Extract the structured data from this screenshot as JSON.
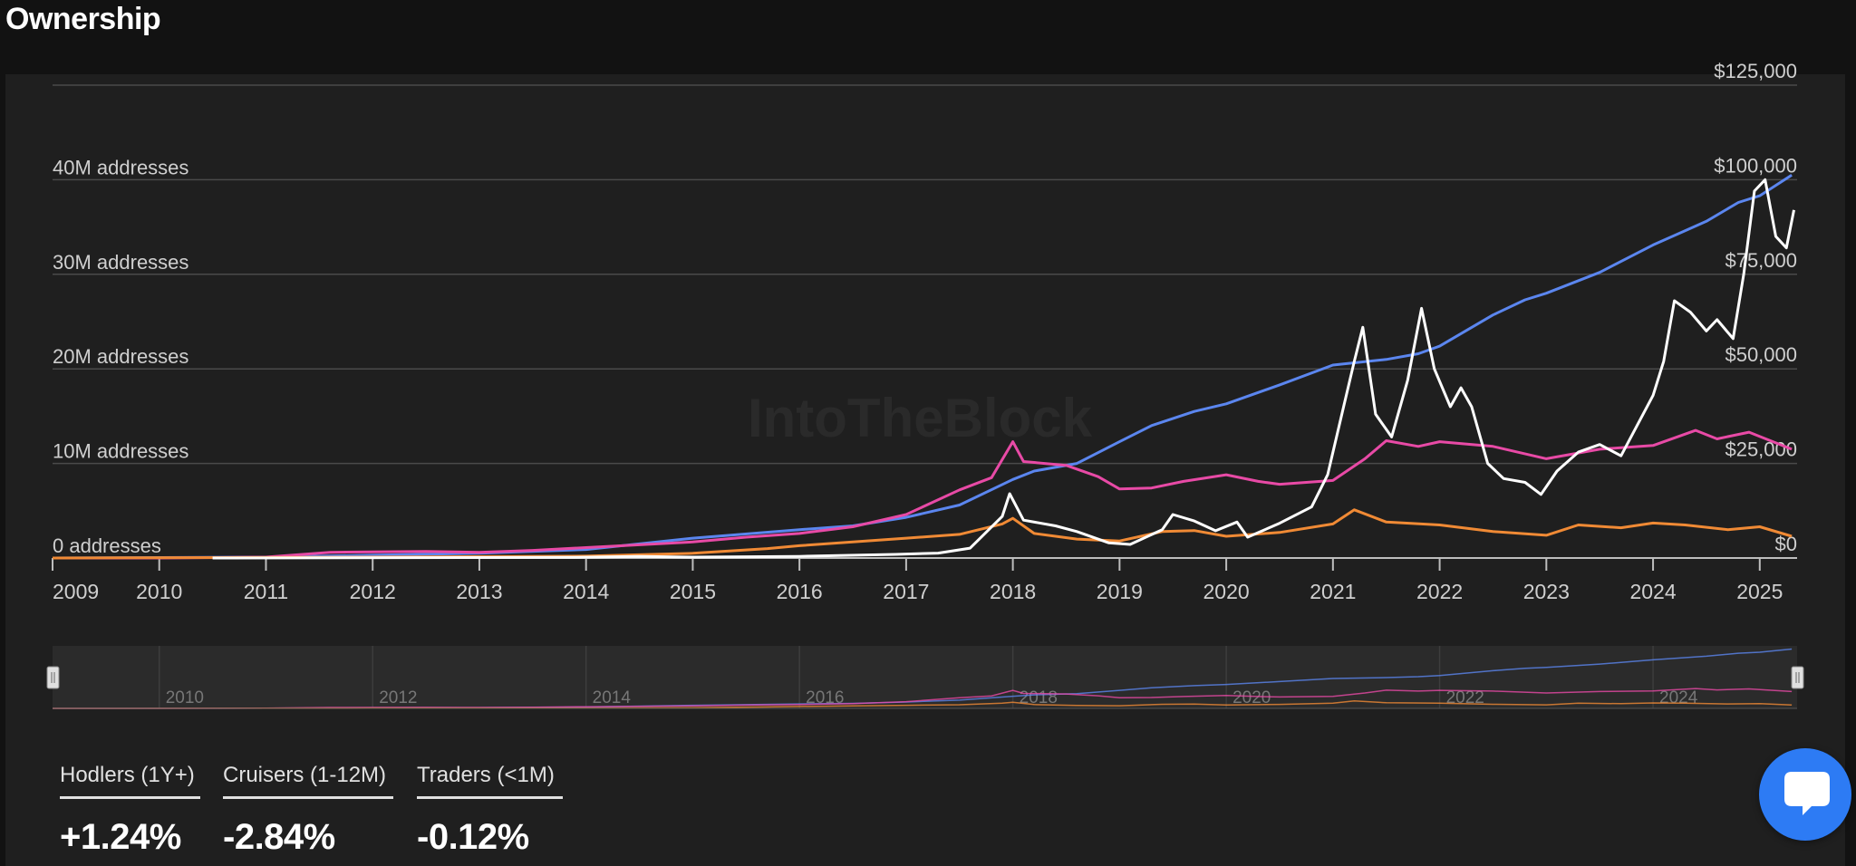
{
  "page": {
    "title": "Ownership"
  },
  "chart_data": {
    "type": "line",
    "title": "",
    "watermark": "IntoTheBlock",
    "x_range": [
      "2009-01-01",
      "2025-04-20"
    ],
    "x_ticks": [
      "2009",
      "2010",
      "2011",
      "2012",
      "2013",
      "2014",
      "2015",
      "2016",
      "2017",
      "2018",
      "2019",
      "2020",
      "2021",
      "2022",
      "2023",
      "2024",
      "2025"
    ],
    "y_left": {
      "min": 0,
      "max": 50000000,
      "ticks": [
        {
          "value": 0,
          "label": "0 addresses"
        },
        {
          "value": 10000000,
          "label": "10M addresses"
        },
        {
          "value": 20000000,
          "label": "20M addresses"
        },
        {
          "value": 30000000,
          "label": "30M addresses"
        },
        {
          "value": 40000000,
          "label": "40M addresses"
        }
      ]
    },
    "y_right": {
      "min": 0,
      "max": 125000,
      "ticks": [
        {
          "value": 0,
          "label": "$0"
        },
        {
          "value": 25000,
          "label": "$25,000"
        },
        {
          "value": 50000,
          "label": "$50,000"
        },
        {
          "value": 75000,
          "label": "$75,000"
        },
        {
          "value": 100000,
          "label": "$100,000"
        },
        {
          "value": 125000,
          "label": "$125,000"
        }
      ]
    },
    "grid": true,
    "series": [
      {
        "name": "Hodlers (1Y+)",
        "axis": "left",
        "color": "#5b86ef",
        "points": [
          [
            2009.0,
            0
          ],
          [
            2011.0,
            0.1
          ],
          [
            2012.0,
            0.3
          ],
          [
            2013.0,
            0.5
          ],
          [
            2014.0,
            0.9
          ],
          [
            2015.0,
            2.1
          ],
          [
            2016.0,
            3.0
          ],
          [
            2016.5,
            3.4
          ],
          [
            2017.0,
            4.3
          ],
          [
            2017.5,
            5.6
          ],
          [
            2018.0,
            8.3
          ],
          [
            2018.2,
            9.2
          ],
          [
            2018.6,
            10.0
          ],
          [
            2019.0,
            12.3
          ],
          [
            2019.3,
            14.0
          ],
          [
            2019.7,
            15.5
          ],
          [
            2020.0,
            16.3
          ],
          [
            2020.5,
            18.3
          ],
          [
            2021.0,
            20.4
          ],
          [
            2021.5,
            21.0
          ],
          [
            2021.8,
            21.6
          ],
          [
            2022.0,
            22.4
          ],
          [
            2022.5,
            25.7
          ],
          [
            2022.8,
            27.3
          ],
          [
            2023.0,
            28.0
          ],
          [
            2023.5,
            30.2
          ],
          [
            2024.0,
            33.1
          ],
          [
            2024.5,
            35.6
          ],
          [
            2024.8,
            37.6
          ],
          [
            2025.0,
            38.3
          ],
          [
            2025.3,
            40.5
          ]
        ]
      },
      {
        "name": "Cruisers (1-12M)",
        "axis": "left",
        "color": "#e84aa6",
        "points": [
          [
            2009.0,
            0
          ],
          [
            2010.0,
            0
          ],
          [
            2011.0,
            0.1
          ],
          [
            2011.6,
            0.6
          ],
          [
            2012.5,
            0.7
          ],
          [
            2013.0,
            0.6
          ],
          [
            2013.5,
            0.8
          ],
          [
            2014.0,
            1.1
          ],
          [
            2014.5,
            1.4
          ],
          [
            2015.0,
            1.7
          ],
          [
            2015.5,
            2.2
          ],
          [
            2016.0,
            2.6
          ],
          [
            2016.5,
            3.3
          ],
          [
            2017.0,
            4.6
          ],
          [
            2017.5,
            7.2
          ],
          [
            2017.8,
            8.5
          ],
          [
            2018.0,
            12.3
          ],
          [
            2018.1,
            10.2
          ],
          [
            2018.5,
            9.8
          ],
          [
            2018.8,
            8.6
          ],
          [
            2019.0,
            7.3
          ],
          [
            2019.3,
            7.4
          ],
          [
            2019.6,
            8.1
          ],
          [
            2020.0,
            8.8
          ],
          [
            2020.3,
            8.1
          ],
          [
            2020.5,
            7.8
          ],
          [
            2021.0,
            8.2
          ],
          [
            2021.3,
            10.5
          ],
          [
            2021.5,
            12.4
          ],
          [
            2021.8,
            11.8
          ],
          [
            2022.0,
            12.3
          ],
          [
            2022.5,
            11.8
          ],
          [
            2023.0,
            10.5
          ],
          [
            2023.5,
            11.5
          ],
          [
            2024.0,
            11.9
          ],
          [
            2024.4,
            13.5
          ],
          [
            2024.6,
            12.6
          ],
          [
            2024.9,
            13.3
          ],
          [
            2025.3,
            11.5
          ]
        ]
      },
      {
        "name": "Traders (<1M)",
        "axis": "left",
        "color": "#f08a35",
        "points": [
          [
            2009.0,
            0
          ],
          [
            2012.0,
            0.1
          ],
          [
            2014.0,
            0.2
          ],
          [
            2015.0,
            0.5
          ],
          [
            2015.7,
            1.0
          ],
          [
            2016.0,
            1.3
          ],
          [
            2016.5,
            1.7
          ],
          [
            2017.0,
            2.1
          ],
          [
            2017.5,
            2.5
          ],
          [
            2017.9,
            3.6
          ],
          [
            2018.0,
            4.2
          ],
          [
            2018.2,
            2.6
          ],
          [
            2018.6,
            2.0
          ],
          [
            2019.0,
            1.8
          ],
          [
            2019.4,
            2.8
          ],
          [
            2019.7,
            2.9
          ],
          [
            2020.0,
            2.3
          ],
          [
            2020.5,
            2.7
          ],
          [
            2021.0,
            3.6
          ],
          [
            2021.2,
            5.1
          ],
          [
            2021.5,
            3.8
          ],
          [
            2022.0,
            3.5
          ],
          [
            2022.5,
            2.8
          ],
          [
            2023.0,
            2.4
          ],
          [
            2023.3,
            3.5
          ],
          [
            2023.7,
            3.2
          ],
          [
            2024.0,
            3.7
          ],
          [
            2024.3,
            3.5
          ],
          [
            2024.7,
            3.0
          ],
          [
            2025.0,
            3.3
          ],
          [
            2025.3,
            2.3
          ]
        ]
      },
      {
        "name": "Price",
        "axis": "right",
        "color": "#ffffff",
        "points": [
          [
            2010.5,
            0
          ],
          [
            2013.9,
            200
          ],
          [
            2014.5,
            400
          ],
          [
            2015.0,
            250
          ],
          [
            2016.0,
            430
          ],
          [
            2016.9,
            950
          ],
          [
            2017.3,
            1300
          ],
          [
            2017.6,
            2600
          ],
          [
            2017.9,
            11000
          ],
          [
            2017.97,
            17000
          ],
          [
            2018.1,
            10000
          ],
          [
            2018.4,
            8500
          ],
          [
            2018.6,
            7000
          ],
          [
            2018.9,
            4000
          ],
          [
            2019.1,
            3600
          ],
          [
            2019.4,
            7500
          ],
          [
            2019.5,
            11500
          ],
          [
            2019.7,
            9800
          ],
          [
            2019.9,
            7200
          ],
          [
            2020.1,
            9500
          ],
          [
            2020.2,
            5500
          ],
          [
            2020.5,
            9200
          ],
          [
            2020.8,
            13500
          ],
          [
            2020.95,
            22000
          ],
          [
            2021.1,
            40000
          ],
          [
            2021.2,
            52000
          ],
          [
            2021.28,
            61000
          ],
          [
            2021.4,
            38000
          ],
          [
            2021.55,
            32000
          ],
          [
            2021.7,
            47000
          ],
          [
            2021.83,
            66000
          ],
          [
            2021.95,
            50000
          ],
          [
            2022.1,
            40000
          ],
          [
            2022.2,
            45000
          ],
          [
            2022.3,
            40000
          ],
          [
            2022.45,
            25000
          ],
          [
            2022.6,
            21000
          ],
          [
            2022.8,
            20000
          ],
          [
            2022.95,
            16800
          ],
          [
            2023.1,
            23000
          ],
          [
            2023.3,
            28000
          ],
          [
            2023.5,
            30000
          ],
          [
            2023.7,
            27000
          ],
          [
            2023.85,
            35000
          ],
          [
            2024.0,
            43000
          ],
          [
            2024.1,
            52000
          ],
          [
            2024.2,
            68000
          ],
          [
            2024.35,
            65000
          ],
          [
            2024.5,
            60000
          ],
          [
            2024.6,
            63000
          ],
          [
            2024.75,
            58000
          ],
          [
            2024.85,
            75000
          ],
          [
            2024.95,
            97000
          ],
          [
            2025.05,
            100000
          ],
          [
            2025.15,
            85000
          ],
          [
            2025.25,
            82000
          ],
          [
            2025.32,
            92000
          ]
        ]
      }
    ],
    "navigator": {
      "x_ticks": [
        "2010",
        "2012",
        "2014",
        "2016",
        "2018",
        "2020",
        "2022",
        "2024"
      ]
    },
    "legend": [
      {
        "label": "Hodlers (1Y+)",
        "change": "+1.24%",
        "color": "#5b86ef"
      },
      {
        "label": "Cruisers (1-12M)",
        "change": "-2.84%",
        "color": "#e84aa6"
      },
      {
        "label": "Traders (<1M)",
        "change": "-0.12%",
        "color": "#f08a35"
      }
    ]
  },
  "icons": {
    "chat": "chat-bubble-icon"
  }
}
